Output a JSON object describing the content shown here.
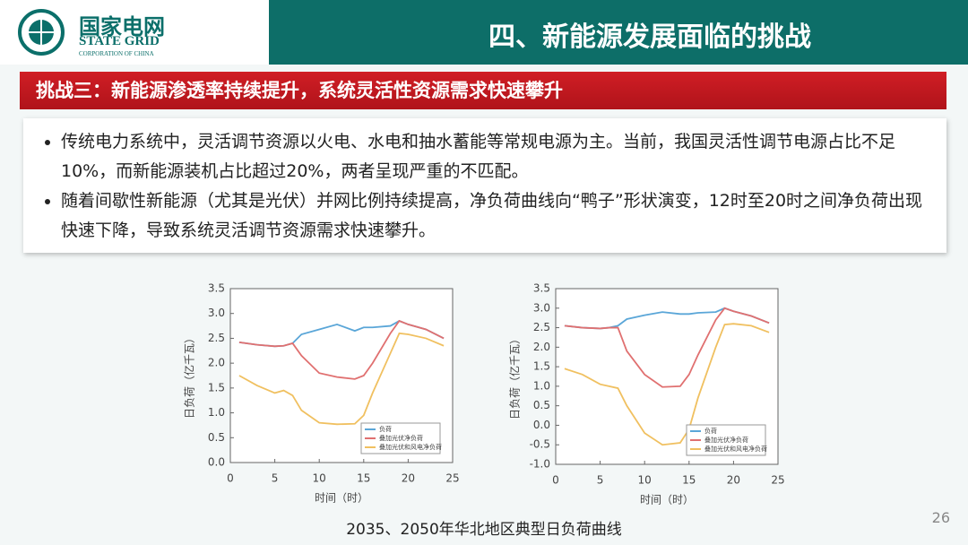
{
  "header": {
    "logo": {
      "name": "国家电网",
      "english": "STATE GRID",
      "sub": "CORPORATION OF CHINA"
    },
    "title": "四、新能源发展面临的挑战"
  },
  "challenge": "挑战三：新能源渗透率持续提升，系统灵活性资源需求快速攀升",
  "bullets": [
    "传统电力系统中，灵活调节资源以火电、水电和抽水蓄能等常规电源为主。当前，我国灵活性调节电源占比不足10%，而新能源装机占比超过20%，两者呈现严重的不匹配。",
    "随着间歇性新能源（尤其是光伏）并网比例持续提高，净负荷曲线向“鸭子”形状演变，12时至20时之间净负荷出现快速下降，导致系统灵活调节资源需求快速攀升。"
  ],
  "caption": "2035、2050年华北地区典型日负荷曲线",
  "page_number": "26",
  "chart_data": [
    {
      "type": "line",
      "xlabel": "时间（时）",
      "ylabel": "日负荷（亿千瓦）",
      "x": [
        1,
        3,
        5,
        6,
        7,
        8,
        10,
        12,
        14,
        15,
        16,
        18,
        19,
        20,
        22,
        24
      ],
      "series": [
        {
          "name": "负荷",
          "color": "#5aa6d8",
          "values": [
            2.42,
            2.37,
            2.34,
            2.35,
            2.4,
            2.58,
            2.68,
            2.78,
            2.65,
            2.72,
            2.72,
            2.75,
            2.85,
            2.78,
            2.68,
            2.5
          ]
        },
        {
          "name": "叠加光伏净负荷",
          "color": "#e07070",
          "values": [
            2.42,
            2.37,
            2.34,
            2.35,
            2.4,
            2.15,
            1.8,
            1.72,
            1.68,
            1.75,
            2.0,
            2.6,
            2.85,
            2.78,
            2.68,
            2.5
          ]
        },
        {
          "name": "叠加光伏和风电净负荷",
          "color": "#f0c060",
          "values": [
            1.75,
            1.55,
            1.4,
            1.45,
            1.35,
            1.05,
            0.8,
            0.77,
            0.78,
            0.95,
            1.4,
            2.2,
            2.6,
            2.58,
            2.5,
            2.35
          ]
        }
      ],
      "xlim": [
        0,
        25
      ],
      "xticks": [
        0,
        5,
        10,
        15,
        20,
        25
      ],
      "ylim": [
        0,
        3.5
      ],
      "yticks": [
        {
          "value": 0,
          "label": "0.0"
        },
        0.5,
        {
          "value": 1,
          "label": "1.0"
        },
        1.5,
        {
          "value": 2,
          "label": "2.0"
        },
        2.5,
        {
          "value": 3,
          "label": "3.0"
        },
        3.5
      ],
      "legend": "lower right"
    },
    {
      "type": "line",
      "xlabel": "时间（时）",
      "ylabel": "日负荷（亿千瓦）",
      "x": [
        1,
        3,
        5,
        6,
        7,
        8,
        10,
        12,
        14,
        15,
        16,
        18,
        19,
        20,
        22,
        24
      ],
      "series": [
        {
          "name": "负荷",
          "color": "#5aa6d8",
          "values": [
            2.55,
            2.5,
            2.48,
            2.5,
            2.55,
            2.72,
            2.82,
            2.9,
            2.85,
            2.85,
            2.88,
            2.9,
            3.0,
            2.92,
            2.8,
            2.62
          ]
        },
        {
          "name": "叠加光伏净负荷",
          "color": "#e07070",
          "values": [
            2.55,
            2.5,
            2.48,
            2.5,
            2.5,
            1.9,
            1.3,
            0.98,
            1.0,
            1.3,
            1.8,
            2.7,
            3.0,
            2.92,
            2.8,
            2.62
          ]
        },
        {
          "name": "叠加光伏和风电净负荷",
          "color": "#f0c060",
          "values": [
            1.45,
            1.3,
            1.05,
            1.0,
            0.95,
            0.5,
            -0.2,
            -0.5,
            -0.45,
            -0.1,
            0.7,
            2.0,
            2.58,
            2.6,
            2.55,
            2.38
          ]
        }
      ],
      "xlim": [
        0,
        25
      ],
      "xticks": [
        0,
        5,
        10,
        15,
        20,
        25
      ],
      "ylim": [
        -1,
        3.5
      ],
      "yticks": [
        {
          "value": -1,
          "label": "-1.0"
        },
        -0.5,
        {
          "value": 0,
          "label": "0.0"
        },
        0.5,
        {
          "value": 1,
          "label": "1.0"
        },
        1.5,
        {
          "value": 2,
          "label": "2.0"
        },
        2.5,
        {
          "value": 3,
          "label": "3.0"
        },
        3.5
      ],
      "legend": "lower right"
    }
  ]
}
